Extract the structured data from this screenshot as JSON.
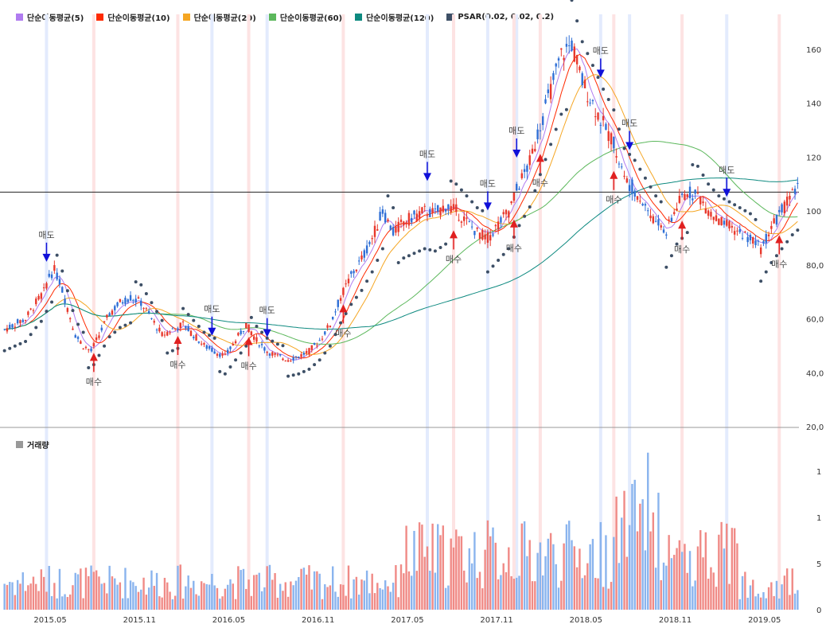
{
  "legend": [
    {
      "label": "단순이동평균(5)",
      "color": "#b07cf0"
    },
    {
      "label": "단순이동평균(10)",
      "color": "#ff2a00"
    },
    {
      "label": "단순이동평균(20)",
      "color": "#f5a623"
    },
    {
      "label": "단순이동평균(60)",
      "color": "#5cb85c"
    },
    {
      "label": "단순이동평균(120)",
      "color": "#0e8a80"
    },
    {
      "label": "PSAR(0.02, 0.02, 0.2)",
      "color": "#3d4f66"
    }
  ],
  "volume_label": "거래량",
  "colors": {
    "up": "#e8382c",
    "down": "#2f6fd6",
    "up_vol": "#f08a86",
    "down_vol": "#8ab4ee",
    "psar": "#3d4f66",
    "buy_arrow": "#e02020",
    "sell_arrow": "#1010d8"
  },
  "chart_data": {
    "type": "candlestick",
    "x_ticks": [
      "2015.05",
      "2015.11",
      "2016.05",
      "2016.11",
      "2017.05",
      "2017.11",
      "2018.05",
      "2018.11",
      "2019.05"
    ],
    "y_ticks": [
      "160",
      "140",
      "120",
      "100",
      "80,0",
      "60,0",
      "40,0",
      "20,0"
    ],
    "volume_ticks": [
      "1",
      "1",
      "5",
      "0"
    ],
    "ylim": [
      20,
      170
    ],
    "horizontal_line": 107,
    "price_path": [
      [
        0,
        56
      ],
      [
        8,
        60
      ],
      [
        12,
        66
      ],
      [
        15,
        70
      ],
      [
        17,
        76
      ],
      [
        19,
        78
      ],
      [
        21,
        74
      ],
      [
        24,
        64
      ],
      [
        27,
        54
      ],
      [
        30,
        50
      ],
      [
        33,
        48
      ],
      [
        36,
        54
      ],
      [
        40,
        62
      ],
      [
        44,
        66
      ],
      [
        48,
        68
      ],
      [
        52,
        66
      ],
      [
        56,
        60
      ],
      [
        60,
        54
      ],
      [
        64,
        56
      ],
      [
        68,
        58
      ],
      [
        72,
        54
      ],
      [
        76,
        50
      ],
      [
        80,
        48
      ],
      [
        84,
        46
      ],
      [
        88,
        52
      ],
      [
        92,
        58
      ],
      [
        96,
        52
      ],
      [
        100,
        48
      ],
      [
        104,
        46
      ],
      [
        108,
        45
      ],
      [
        112,
        46
      ],
      [
        116,
        48
      ],
      [
        120,
        52
      ],
      [
        124,
        58
      ],
      [
        128,
        68
      ],
      [
        132,
        76
      ],
      [
        136,
        82
      ],
      [
        140,
        90
      ],
      [
        144,
        100
      ],
      [
        148,
        92
      ],
      [
        152,
        96
      ],
      [
        156,
        98
      ],
      [
        160,
        100
      ],
      [
        164,
        99
      ],
      [
        168,
        102
      ],
      [
        172,
        100
      ],
      [
        176,
        96
      ],
      [
        180,
        92
      ],
      [
        184,
        90
      ],
      [
        188,
        95
      ],
      [
        192,
        100
      ],
      [
        196,
        110
      ],
      [
        200,
        118
      ],
      [
        204,
        132
      ],
      [
        208,
        145
      ],
      [
        212,
        158
      ],
      [
        216,
        162
      ],
      [
        220,
        148
      ],
      [
        224,
        140
      ],
      [
        228,
        132
      ],
      [
        232,
        125
      ],
      [
        236,
        112
      ],
      [
        240,
        108
      ],
      [
        244,
        102
      ],
      [
        248,
        96
      ],
      [
        252,
        92
      ],
      [
        256,
        102
      ],
      [
        260,
        107
      ],
      [
        264,
        106
      ],
      [
        268,
        100
      ],
      [
        272,
        96
      ],
      [
        276,
        94
      ],
      [
        280,
        92
      ],
      [
        284,
        90
      ],
      [
        288,
        86
      ],
      [
        292,
        94
      ],
      [
        296,
        100
      ],
      [
        300,
        106
      ],
      [
        302,
        108
      ]
    ],
    "signals": [
      {
        "type": "sell",
        "label": "매도",
        "t": 16
      },
      {
        "type": "buy",
        "label": "매수",
        "t": 34
      },
      {
        "type": "buy",
        "label": "매수",
        "t": 66
      },
      {
        "type": "sell",
        "label": "매도",
        "t": 79
      },
      {
        "type": "buy",
        "label": "매수",
        "t": 93
      },
      {
        "type": "sell",
        "label": "매도",
        "t": 100
      },
      {
        "type": "buy",
        "label": "매수",
        "t": 129
      },
      {
        "type": "sell",
        "label": "매도",
        "t": 161
      },
      {
        "type": "buy",
        "label": "매수",
        "t": 171
      },
      {
        "type": "sell",
        "label": "매도",
        "t": 184
      },
      {
        "type": "sell",
        "label": "매도",
        "t": 195
      },
      {
        "type": "buy",
        "label": "매수",
        "t": 194
      },
      {
        "type": "buy",
        "label": "매수",
        "t": 204
      },
      {
        "type": "sell",
        "label": "매도",
        "t": 227
      },
      {
        "type": "buy",
        "label": "매수",
        "t": 232
      },
      {
        "type": "sell",
        "label": "매도",
        "t": 238
      },
      {
        "type": "buy",
        "label": "매수",
        "t": 258
      },
      {
        "type": "sell",
        "label": "매도",
        "t": 275
      },
      {
        "type": "buy",
        "label": "매수",
        "t": 295
      }
    ]
  }
}
